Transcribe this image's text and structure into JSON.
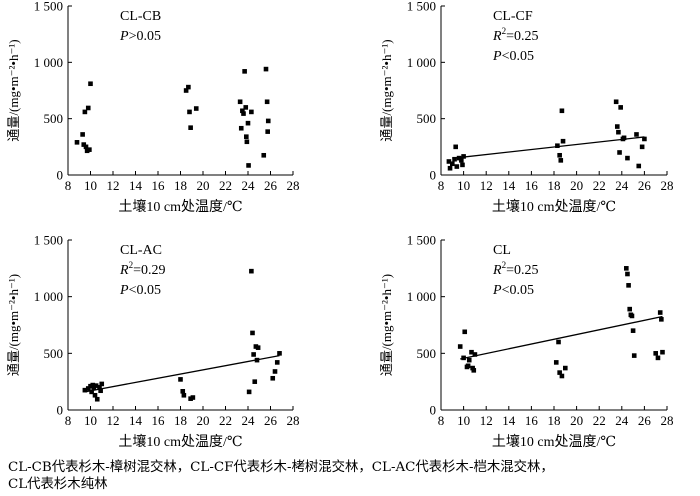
{
  "chart_data": [
    {
      "type": "scatter",
      "id": "cl-cb",
      "title": "CL-CB",
      "stat_lines": [
        {
          "label": "P",
          "value": ">0.05"
        }
      ],
      "xlabel": "土壤10 cm处温度/℃",
      "ylabel": "通量/(mg•m⁻²•h⁻¹)",
      "xlim": [
        8,
        28
      ],
      "ylim": [
        0,
        1500
      ],
      "xticks": [
        "8",
        "10",
        "12",
        "14",
        "16",
        "18",
        "20",
        "22",
        "24",
        "26",
        "28"
      ],
      "yticks": [
        "0",
        "500",
        "1 000",
        "1 500"
      ],
      "points": [
        [
          8.8,
          290
        ],
        [
          9.3,
          360
        ],
        [
          9.4,
          270
        ],
        [
          9.5,
          560
        ],
        [
          9.6,
          250
        ],
        [
          9.7,
          215
        ],
        [
          9.8,
          595
        ],
        [
          9.9,
          225
        ],
        [
          10.0,
          810
        ],
        [
          18.5,
          750
        ],
        [
          18.7,
          780
        ],
        [
          18.8,
          560
        ],
        [
          18.9,
          420
        ],
        [
          19.4,
          590
        ],
        [
          23.3,
          650
        ],
        [
          23.4,
          415
        ],
        [
          23.5,
          570
        ],
        [
          23.6,
          545
        ],
        [
          23.7,
          920
        ],
        [
          23.8,
          600
        ],
        [
          23.85,
          340
        ],
        [
          23.9,
          295
        ],
        [
          24.0,
          460
        ],
        [
          24.05,
          85
        ],
        [
          24.3,
          560
        ],
        [
          25.4,
          175
        ],
        [
          25.6,
          940
        ],
        [
          25.7,
          650
        ],
        [
          25.75,
          385
        ],
        [
          25.8,
          480
        ]
      ],
      "fit": null
    },
    {
      "type": "scatter",
      "id": "cl-cf",
      "title": "CL-CF",
      "stat_lines": [
        {
          "label": "R2",
          "value": "=0.25"
        },
        {
          "label": "P",
          "value": "<0.05"
        }
      ],
      "xlabel": "土壤10 cm处温度/℃",
      "ylabel": "通量/(mg•m⁻²•h⁻¹)",
      "xlim": [
        8,
        28
      ],
      "ylim": [
        0,
        1500
      ],
      "xticks": [
        "8",
        "10",
        "12",
        "14",
        "16",
        "18",
        "20",
        "22",
        "24",
        "26",
        "28"
      ],
      "yticks": [
        "0",
        "500",
        "1 000",
        "1 500"
      ],
      "points": [
        [
          8.7,
          120
        ],
        [
          8.8,
          60
        ],
        [
          9.0,
          100
        ],
        [
          9.2,
          140
        ],
        [
          9.3,
          250
        ],
        [
          9.4,
          75
        ],
        [
          9.6,
          150
        ],
        [
          9.8,
          130
        ],
        [
          10.0,
          165
        ],
        [
          9.9,
          90
        ],
        [
          18.3,
          260
        ],
        [
          18.5,
          175
        ],
        [
          18.6,
          130
        ],
        [
          18.7,
          570
        ],
        [
          18.8,
          300
        ],
        [
          23.5,
          650
        ],
        [
          23.6,
          430
        ],
        [
          23.7,
          380
        ],
        [
          23.8,
          200
        ],
        [
          23.9,
          600
        ],
        [
          24.1,
          320
        ],
        [
          24.2,
          330
        ],
        [
          24.5,
          150
        ],
        [
          25.3,
          360
        ],
        [
          25.5,
          80
        ],
        [
          25.8,
          250
        ],
        [
          26.0,
          320
        ]
      ],
      "fit": {
        "x": [
          9.0,
          26.0
        ],
        "y": [
          148,
          338
        ]
      }
    },
    {
      "type": "scatter",
      "id": "cl-ac",
      "title": "CL-AC",
      "stat_lines": [
        {
          "label": "R2",
          "value": "=0.29"
        },
        {
          "label": "P",
          "value": "<0.05"
        }
      ],
      "xlabel": "土壤10 cm处温度/℃",
      "ylabel": "通量/(mg•m⁻²•h⁻¹)",
      "xlim": [
        8,
        28
      ],
      "ylim": [
        0,
        1500
      ],
      "xticks": [
        "8",
        "10",
        "12",
        "14",
        "16",
        "18",
        "20",
        "22",
        "24",
        "26",
        "28"
      ],
      "yticks": [
        "0",
        "500",
        "1 000",
        "1 500"
      ],
      "points": [
        [
          9.5,
          175
        ],
        [
          9.8,
          190
        ],
        [
          10.0,
          210
        ],
        [
          10.1,
          160
        ],
        [
          10.2,
          220
        ],
        [
          10.3,
          200
        ],
        [
          10.4,
          130
        ],
        [
          10.5,
          215
        ],
        [
          10.6,
          95
        ],
        [
          10.8,
          200
        ],
        [
          10.9,
          170
        ],
        [
          11.0,
          230
        ],
        [
          18.0,
          270
        ],
        [
          18.2,
          165
        ],
        [
          18.3,
          130
        ],
        [
          18.9,
          100
        ],
        [
          19.1,
          110
        ],
        [
          24.1,
          160
        ],
        [
          24.3,
          1225
        ],
        [
          24.4,
          680
        ],
        [
          24.5,
          490
        ],
        [
          24.6,
          250
        ],
        [
          24.7,
          560
        ],
        [
          24.8,
          440
        ],
        [
          24.9,
          550
        ],
        [
          26.2,
          280
        ],
        [
          26.4,
          340
        ],
        [
          26.6,
          420
        ],
        [
          26.8,
          500
        ]
      ],
      "fit": {
        "x": [
          9.5,
          26.8
        ],
        "y": [
          160,
          480
        ]
      }
    },
    {
      "type": "scatter",
      "id": "cl",
      "title": "CL",
      "stat_lines": [
        {
          "label": "R2",
          "value": "=0.25"
        },
        {
          "label": "P",
          "value": "<0.05"
        }
      ],
      "xlabel": "土壤10 cm处温度/℃",
      "ylabel": "通量/(mg•m⁻²•h⁻¹)",
      "xlim": [
        8,
        28
      ],
      "ylim": [
        0,
        1500
      ],
      "xticks": [
        "8",
        "10",
        "12",
        "14",
        "16",
        "18",
        "20",
        "22",
        "24",
        "26",
        "28"
      ],
      "yticks": [
        "0",
        "500",
        "1 000",
        "1 500"
      ],
      "points": [
        [
          9.7,
          560
        ],
        [
          10.0,
          460
        ],
        [
          10.1,
          690
        ],
        [
          10.3,
          380
        ],
        [
          10.4,
          390
        ],
        [
          10.5,
          440
        ],
        [
          10.7,
          510
        ],
        [
          10.8,
          370
        ],
        [
          10.9,
          350
        ],
        [
          11.0,
          490
        ],
        [
          18.2,
          420
        ],
        [
          18.4,
          600
        ],
        [
          18.5,
          330
        ],
        [
          18.7,
          300
        ],
        [
          19.0,
          370
        ],
        [
          24.4,
          1250
        ],
        [
          24.5,
          1200
        ],
        [
          24.6,
          1100
        ],
        [
          24.7,
          890
        ],
        [
          24.8,
          840
        ],
        [
          24.9,
          830
        ],
        [
          25.0,
          700
        ],
        [
          25.1,
          480
        ],
        [
          27.0,
          500
        ],
        [
          27.2,
          460
        ],
        [
          27.4,
          860
        ],
        [
          27.5,
          800
        ],
        [
          27.6,
          510
        ]
      ],
      "fit": {
        "x": [
          9.7,
          27.6
        ],
        "y": [
          450,
          825
        ]
      }
    }
  ],
  "caption": {
    "line1": "CL-CB代表杉木-樟树混交林，CL-CF代表杉木-栲树混交林，CL-AC代表杉木-桤木混交林，",
    "line2": "CL代表杉木纯林"
  }
}
